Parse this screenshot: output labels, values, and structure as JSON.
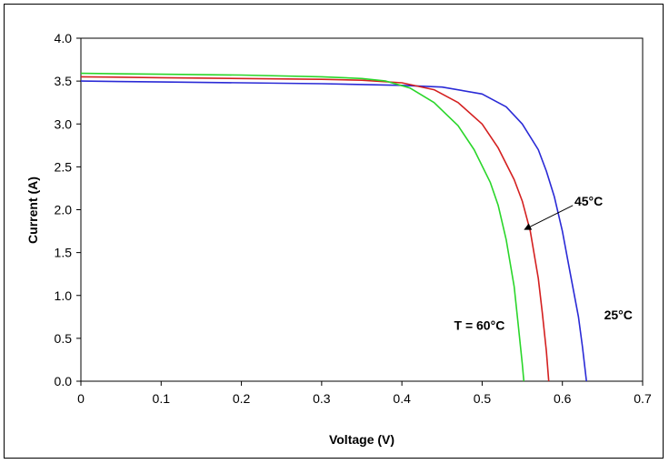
{
  "chart_data": {
    "type": "line",
    "title": "",
    "xlabel": "Voltage (V)",
    "ylabel": "Current (A)",
    "xlim": [
      0,
      0.7
    ],
    "ylim": [
      0,
      4.0
    ],
    "x_ticks": [
      "0",
      "0.1",
      "0.2",
      "0.3",
      "0.4",
      "0.5",
      "0.6",
      "0.7"
    ],
    "y_ticks": [
      "0.0",
      "0.5",
      "1.0",
      "1.5",
      "2.0",
      "2.5",
      "3.0",
      "3.5",
      "4.0"
    ],
    "grid": false,
    "series": [
      {
        "color": "#2a2ad6",
        "points": [
          [
            0,
            3.5
          ],
          [
            0.1,
            3.49
          ],
          [
            0.2,
            3.48
          ],
          [
            0.3,
            3.47
          ],
          [
            0.4,
            3.45
          ],
          [
            0.45,
            3.43
          ],
          [
            0.5,
            3.35
          ],
          [
            0.53,
            3.2
          ],
          [
            0.55,
            3.0
          ],
          [
            0.57,
            2.7
          ],
          [
            0.58,
            2.45
          ],
          [
            0.59,
            2.15
          ],
          [
            0.6,
            1.75
          ],
          [
            0.61,
            1.25
          ],
          [
            0.62,
            0.75
          ],
          [
            0.625,
            0.4
          ],
          [
            0.63,
            0.0
          ]
        ]
      },
      {
        "color": "#d42020",
        "points": [
          [
            0,
            3.55
          ],
          [
            0.1,
            3.54
          ],
          [
            0.2,
            3.53
          ],
          [
            0.3,
            3.52
          ],
          [
            0.35,
            3.51
          ],
          [
            0.4,
            3.48
          ],
          [
            0.44,
            3.4
          ],
          [
            0.47,
            3.25
          ],
          [
            0.5,
            3.0
          ],
          [
            0.52,
            2.72
          ],
          [
            0.54,
            2.35
          ],
          [
            0.55,
            2.1
          ],
          [
            0.56,
            1.75
          ],
          [
            0.57,
            1.2
          ],
          [
            0.575,
            0.8
          ],
          [
            0.58,
            0.35
          ],
          [
            0.583,
            0.0
          ]
        ]
      },
      {
        "color": "#2ad62a",
        "points": [
          [
            0,
            3.59
          ],
          [
            0.1,
            3.58
          ],
          [
            0.2,
            3.57
          ],
          [
            0.3,
            3.55
          ],
          [
            0.35,
            3.53
          ],
          [
            0.38,
            3.5
          ],
          [
            0.41,
            3.42
          ],
          [
            0.44,
            3.25
          ],
          [
            0.47,
            2.98
          ],
          [
            0.49,
            2.7
          ],
          [
            0.51,
            2.32
          ],
          [
            0.52,
            2.05
          ],
          [
            0.53,
            1.65
          ],
          [
            0.54,
            1.1
          ],
          [
            0.545,
            0.65
          ],
          [
            0.55,
            0.2
          ],
          [
            0.552,
            0.0
          ]
        ]
      }
    ],
    "annotations": [
      {
        "text": "T = 60°C",
        "x": 0.465,
        "y": 0.6
      },
      {
        "text": "45°C",
        "x": 0.615,
        "y": 2.05
      },
      {
        "text": "25°C",
        "x": 0.652,
        "y": 0.72
      }
    ],
    "arrow": {
      "from": [
        0.613,
        2.05
      ],
      "to": [
        0.553,
        1.77
      ]
    }
  }
}
